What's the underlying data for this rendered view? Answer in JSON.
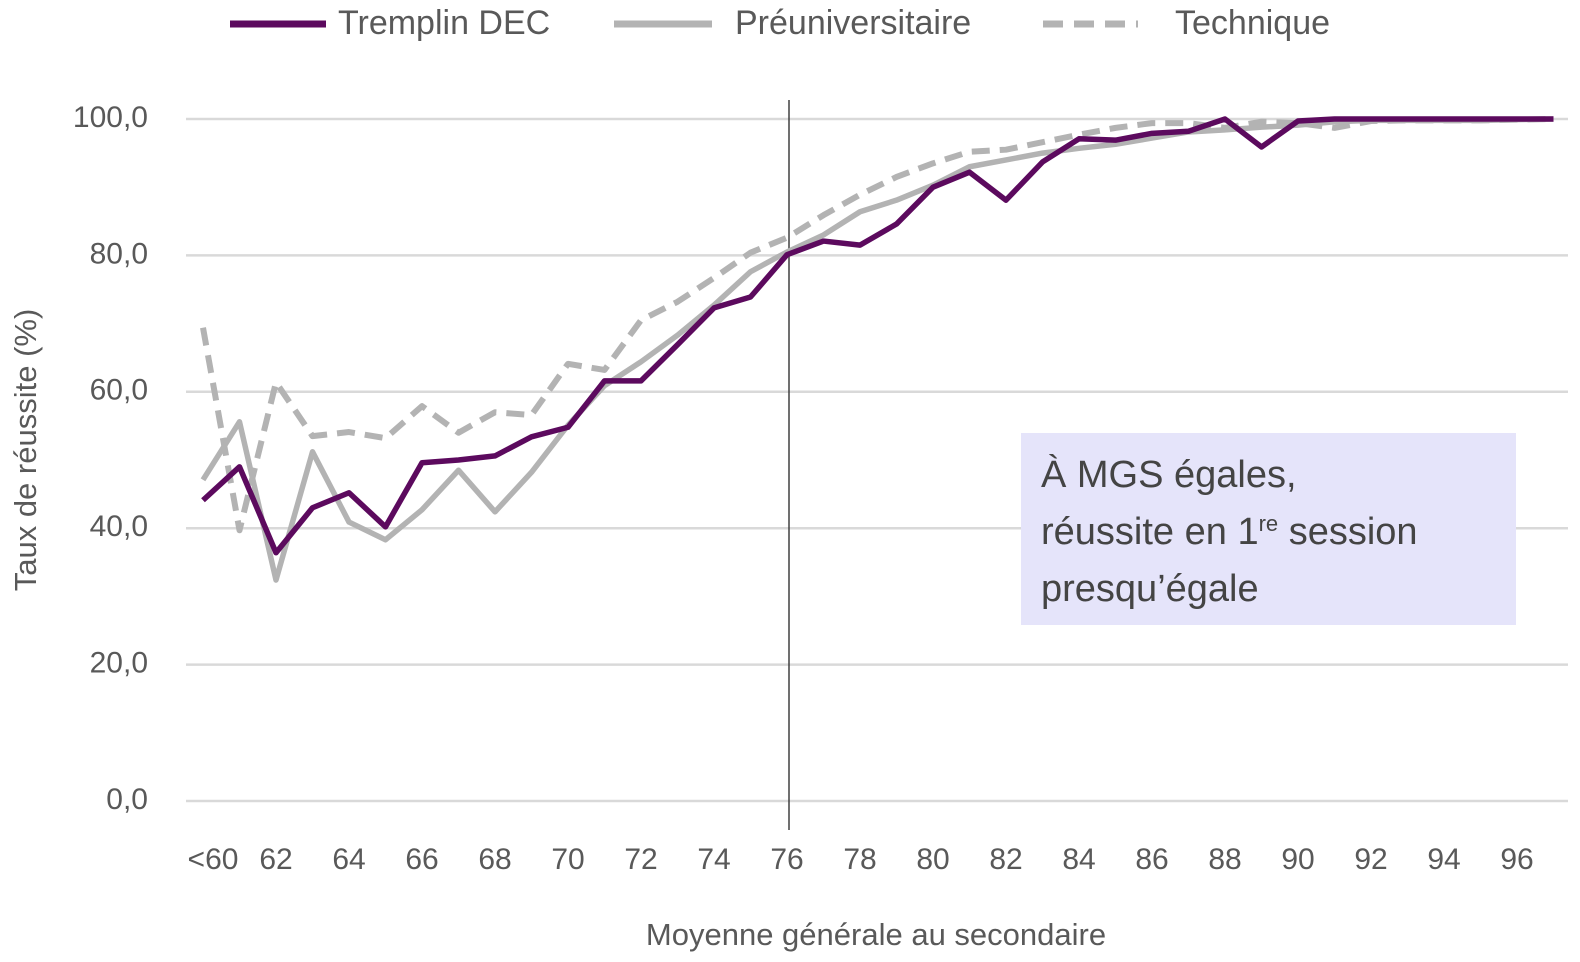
{
  "chart_data": {
    "type": "line",
    "x_label": "Moyenne générale au secondaire",
    "y_label": "Taux de réussite (%)",
    "categories": [
      "<60",
      null,
      "62",
      null,
      "64",
      null,
      "66",
      null,
      "68",
      null,
      "70",
      null,
      "72",
      null,
      "74",
      null,
      "76",
      null,
      "78",
      null,
      "80",
      null,
      "82",
      null,
      "84",
      null,
      "86",
      null,
      "88",
      null,
      "90",
      null,
      "92",
      null,
      "94",
      null,
      "96",
      null
    ],
    "series": [
      {
        "name": "Tremplin DEC",
        "color": "#5c0a5e",
        "dash": "solid",
        "values": [
          44.1,
          49,
          36.4,
          43,
          45.2,
          40.2,
          49.6,
          50,
          50.6,
          53.4,
          54.8,
          61.6,
          61.6,
          66.9,
          72.3,
          73.9,
          80.1,
          82.1,
          81.5,
          84.6,
          90,
          92.2,
          88.1,
          93.7,
          97.1,
          96.9,
          97.9,
          98.2,
          100,
          95.9,
          99.7,
          100,
          100,
          100,
          100,
          100,
          100,
          100
        ]
      },
      {
        "name": "Préuniversitaire",
        "color": "#b3b3b3",
        "dash": "solid",
        "values": [
          47.1,
          55.6,
          32.4,
          51.2,
          40.9,
          38.3,
          42.7,
          48.5,
          42.4,
          48.2,
          55.1,
          60.9,
          64.4,
          68.3,
          72.7,
          77.6,
          80.5,
          83,
          86.4,
          88.1,
          90.3,
          93,
          94,
          95,
          95.7,
          96.3,
          97.2,
          98.1,
          98.4,
          98.8,
          99.1,
          99.6,
          99.8,
          99.8,
          99.8,
          99.8,
          99.9,
          100
        ]
      },
      {
        "name": "Technique",
        "color": "#b3b3b3",
        "dash": "dashed",
        "values": [
          69.4,
          39.7,
          61.4,
          53.5,
          54.1,
          53.2,
          57.9,
          54,
          57,
          56.6,
          64.1,
          63.2,
          70.5,
          73.2,
          76.7,
          80.4,
          82.6,
          85.9,
          88.9,
          91.5,
          93.5,
          95.2,
          95.5,
          96.6,
          97.7,
          98.7,
          99.4,
          99.4,
          98.7,
          99.6,
          99.4,
          98.7,
          99.7,
          99.8,
          99.8,
          99.8,
          99.9,
          100
        ]
      }
    ],
    "ylim": [
      0,
      100
    ],
    "yticks": [
      {
        "value": 0,
        "label": "0,0"
      },
      {
        "value": 20,
        "label": "20,0"
      },
      {
        "value": 40,
        "label": "40,0"
      },
      {
        "value": 60,
        "label": "60,0"
      },
      {
        "value": 80,
        "label": "80,0"
      },
      {
        "value": 100,
        "label": "100,0"
      }
    ],
    "grid": true,
    "legend": "top",
    "vline": "76",
    "annotation": {
      "line1": "À MGS égales,",
      "line2_start": "réussite en 1",
      "line2_sup": "re",
      "line2_end": " session",
      "line3": "presqu’égale"
    }
  }
}
